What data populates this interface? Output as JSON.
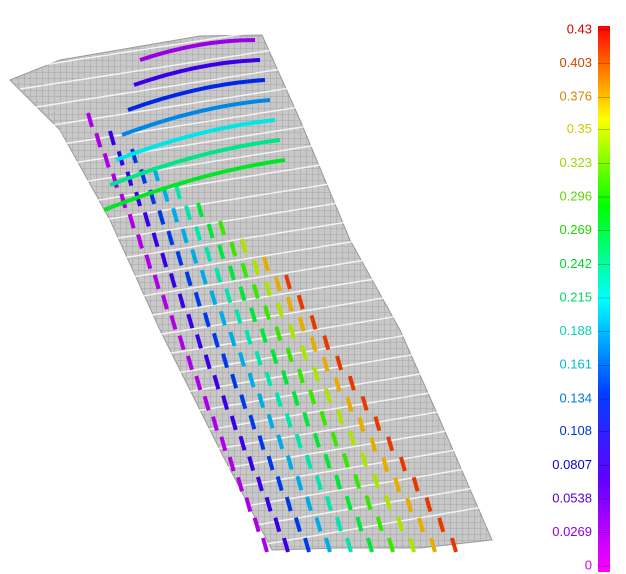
{
  "chart_data": {
    "type": "contour",
    "colorbar_lim": [
      0,
      0.43
    ],
    "colorbar_ticks": [
      0.43,
      0.403,
      0.376,
      0.35,
      0.323,
      0.296,
      0.269,
      0.242,
      0.215,
      0.188,
      0.161,
      0.134,
      0.108,
      0.0807,
      0.0538,
      0.0269,
      0
    ]
  }
}
